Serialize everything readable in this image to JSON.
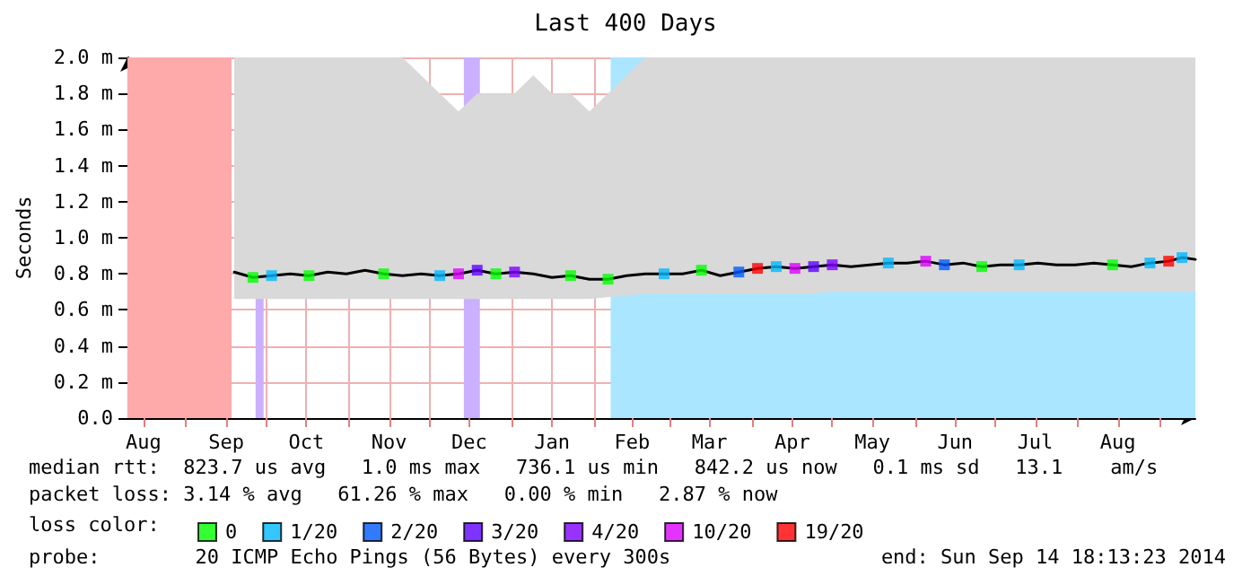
{
  "chart_data": {
    "type": "line",
    "title": "Last 400 Days",
    "ylabel": "Seconds",
    "legend_title": "loss color:",
    "xlim": [
      "2013-08-10",
      "2014-09-14"
    ],
    "xticks": [
      {
        "value": "2013-08-16",
        "label": "Aug"
      },
      {
        "value": "2013-09-01",
        "label": null
      },
      {
        "value": "2013-09-16",
        "label": "Sep"
      },
      {
        "value": "2013-10-01",
        "label": null
      },
      {
        "value": "2013-10-16",
        "label": "Oct"
      },
      {
        "value": "2013-11-01",
        "label": null
      },
      {
        "value": "2013-11-16",
        "label": "Nov"
      },
      {
        "value": "2013-12-01",
        "label": null
      },
      {
        "value": "2013-12-16",
        "label": "Dec"
      },
      {
        "value": "2014-01-01",
        "label": null
      },
      {
        "value": "2014-01-16",
        "label": "Jan"
      },
      {
        "value": "2014-02-01",
        "label": null
      },
      {
        "value": "2014-02-15",
        "label": "Feb"
      },
      {
        "value": "2014-03-01",
        "label": null
      },
      {
        "value": "2014-03-16",
        "label": "Mar"
      },
      {
        "value": "2014-04-01",
        "label": null
      },
      {
        "value": "2014-04-16",
        "label": "Apr"
      },
      {
        "value": "2014-05-01",
        "label": null
      },
      {
        "value": "2014-05-16",
        "label": "May"
      },
      {
        "value": "2014-06-01",
        "label": null
      },
      {
        "value": "2014-06-16",
        "label": "Jun"
      },
      {
        "value": "2014-07-01",
        "label": null
      },
      {
        "value": "2014-07-16",
        "label": "Jul"
      },
      {
        "value": "2014-08-01",
        "label": null
      },
      {
        "value": "2014-08-16",
        "label": "Aug"
      },
      {
        "value": "2014-09-01",
        "label": null
      }
    ],
    "ylim": [
      0,
      2
    ],
    "yticks": [
      {
        "value": 0,
        "label": "0.0"
      },
      {
        "value": 0.2,
        "label": "0.2 m"
      },
      {
        "value": 0.4,
        "label": "0.4 m"
      },
      {
        "value": 0.6,
        "label": "0.6 m"
      },
      {
        "value": 0.8,
        "label": "0.8 m"
      },
      {
        "value": 1,
        "label": "1.0 m"
      },
      {
        "value": 1.2,
        "label": "1.2 m"
      },
      {
        "value": 1.4,
        "label": "1.4 m"
      },
      {
        "value": 1.6,
        "label": "1.6 m"
      },
      {
        "value": 1.8,
        "label": "1.8 m"
      },
      {
        "value": 2,
        "label": "2.0 m"
      }
    ],
    "grid": true,
    "legend": "bottom",
    "marker": "square",
    "series": [
      {
        "color": "#000000",
        "marker": "none",
        "x": [
          "2013-09-19",
          "2013-09-26",
          "2013-10-03",
          "2013-10-10",
          "2013-10-17",
          "2013-10-24",
          "2013-10-31",
          "2013-11-07",
          "2013-11-14",
          "2013-11-21",
          "2013-11-28",
          "2013-12-05",
          "2013-12-12",
          "2013-12-19",
          "2013-12-26",
          "2014-01-02",
          "2014-01-09",
          "2014-01-16",
          "2014-01-23",
          "2014-01-30",
          "2014-02-06",
          "2014-02-13",
          "2014-02-20",
          "2014-02-27",
          "2014-03-06",
          "2014-03-13",
          "2014-03-20",
          "2014-03-27",
          "2014-04-03",
          "2014-04-10",
          "2014-04-17",
          "2014-04-24",
          "2014-05-01",
          "2014-05-08",
          "2014-05-15",
          "2014-05-22",
          "2014-05-29",
          "2014-06-05",
          "2014-06-12",
          "2014-06-19",
          "2014-06-26",
          "2014-07-03",
          "2014-07-10",
          "2014-07-17",
          "2014-07-24",
          "2014-07-31",
          "2014-08-07",
          "2014-08-14",
          "2014-08-21",
          "2014-08-28",
          "2014-09-04",
          "2014-09-09",
          "2014-09-14"
        ],
        "values": [
          0.81,
          0.78,
          0.79,
          0.8,
          0.79,
          0.81,
          0.8,
          0.82,
          0.8,
          0.79,
          0.8,
          0.79,
          0.8,
          0.82,
          0.8,
          0.81,
          0.8,
          0.78,
          0.79,
          0.77,
          0.77,
          0.79,
          0.8,
          0.8,
          0.8,
          0.82,
          0.79,
          0.81,
          0.83,
          0.84,
          0.83,
          0.84,
          0.85,
          0.84,
          0.85,
          0.86,
          0.86,
          0.87,
          0.85,
          0.86,
          0.84,
          0.85,
          0.85,
          0.86,
          0.85,
          0.85,
          0.86,
          0.85,
          0.84,
          0.86,
          0.87,
          0.89,
          0.88
        ],
        "lower": [
          0.66,
          0.66,
          0.66,
          0.66,
          0.66,
          0.66,
          0.66,
          0.66,
          0.66,
          0.66,
          0.66,
          0.66,
          0.66,
          0.66,
          0.66,
          0.66,
          0.66,
          0.66,
          0.66,
          0.66,
          0.67,
          0.68,
          0.69,
          0.69,
          0.69,
          0.69,
          0.69,
          0.69,
          0.69,
          0.69,
          0.69,
          0.69,
          0.7,
          0.7,
          0.7,
          0.7,
          0.7,
          0.7,
          0.7,
          0.7,
          0.7,
          0.7,
          0.7,
          0.7,
          0.7,
          0.7,
          0.7,
          0.7,
          0.7,
          0.7,
          0.7,
          0.7,
          0.7
        ],
        "upper": [
          2,
          2,
          2,
          2,
          2,
          2,
          2,
          2,
          2,
          2,
          1.9,
          1.8,
          1.7,
          1.8,
          1.8,
          1.8,
          1.9,
          1.8,
          1.8,
          1.7,
          1.8,
          1.9,
          2,
          2,
          2,
          2,
          2,
          2,
          2,
          2,
          2,
          2,
          2,
          2,
          2,
          2,
          2,
          2,
          2,
          2,
          2,
          2,
          2,
          2,
          2,
          2,
          2,
          2,
          2,
          2,
          2,
          2,
          2
        ]
      },
      {
        "type": "scatter",
        "name": "0",
        "color": "#00ff00",
        "x": [
          "2013-09-26",
          "2013-10-17",
          "2013-11-14",
          "2013-12-26",
          "2014-01-23",
          "2014-02-06",
          "2014-03-13",
          "2014-06-26",
          "2014-08-14"
        ],
        "values": [
          0.78,
          0.79,
          0.8,
          0.8,
          0.79,
          0.77,
          0.82,
          0.84,
          0.85
        ]
      },
      {
        "type": "scatter",
        "name": "1/20",
        "color": "#00b8ff",
        "x": [
          "2013-10-03",
          "2013-12-05",
          "2014-02-27",
          "2014-04-10",
          "2014-05-22",
          "2014-07-10",
          "2014-08-28",
          "2014-09-09"
        ],
        "values": [
          0.79,
          0.79,
          0.8,
          0.84,
          0.86,
          0.85,
          0.86,
          0.89
        ]
      },
      {
        "type": "scatter",
        "name": "2/20",
        "color": "#0059ff",
        "x": [
          "2014-03-27",
          "2014-06-12"
        ],
        "values": [
          0.81,
          0.85
        ]
      },
      {
        "type": "scatter",
        "name": "3/20",
        "color": "#5e00ff",
        "x": [
          "2013-12-19",
          "2014-04-24"
        ],
        "values": [
          0.82,
          0.84
        ]
      },
      {
        "type": "scatter",
        "name": "4/20",
        "color": "#7e00ff",
        "x": [
          "2014-01-02",
          "2014-05-01"
        ],
        "values": [
          0.81,
          0.85
        ]
      },
      {
        "type": "scatter",
        "name": "10/20",
        "color": "#dd00ff",
        "x": [
          "2013-12-12",
          "2014-04-17",
          "2014-06-05"
        ],
        "values": [
          0.8,
          0.83,
          0.87
        ]
      },
      {
        "type": "scatter",
        "name": "19/20",
        "color": "#ff0000",
        "x": [
          "2014-04-03",
          "2014-09-04"
        ],
        "values": [
          0.83,
          0.87
        ]
      }
    ],
    "bands": [
      {
        "axis": "x",
        "from": "2013-08-10",
        "to": "2013-09-18",
        "color": "#ffaaaa"
      },
      {
        "axis": "x",
        "from": "2013-09-27",
        "to": "2013-09-30",
        "color": "#cbb0ff"
      },
      {
        "axis": "x",
        "from": "2013-12-14",
        "to": "2013-12-20",
        "color": "#cbb0ff"
      },
      {
        "axis": "x",
        "from": "2014-02-07",
        "to": "2014-09-14",
        "color": "#aae6ff"
      }
    ],
    "annotations": [
      "median rtt:  823.7 us avg   1.0 ms max   736.1 us min   842.2 us now   0.1 ms sd   13.1    am/s",
      "packet loss: 3.14 % avg   61.26 % max   0.00 % min   2.87 % now",
      "probe:        20 ICMP Echo Pings (56 Bytes) every 300s",
      "end: Sun Sep 14 18:13:23 2014"
    ]
  }
}
